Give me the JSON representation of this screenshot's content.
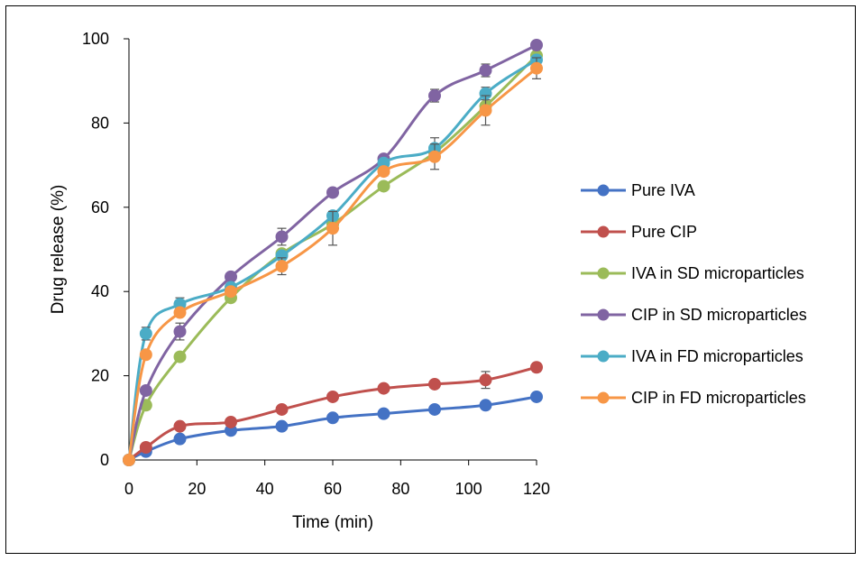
{
  "chart_data": {
    "type": "line",
    "title": "",
    "xlabel": "Time (min)",
    "ylabel": "Drug release (%)",
    "xlim": [
      0,
      120
    ],
    "ylim": [
      0,
      100
    ],
    "xticks": [
      0,
      20,
      40,
      60,
      80,
      100,
      120
    ],
    "yticks": [
      0,
      20,
      40,
      60,
      80,
      100
    ],
    "grid": false,
    "legend_position": "right",
    "x": [
      0,
      5,
      15,
      30,
      45,
      60,
      75,
      90,
      105,
      120
    ],
    "series": [
      {
        "name": "Pure IVA",
        "color": "#4472C4",
        "values": [
          0,
          2,
          5,
          7,
          8,
          10,
          11,
          12,
          13,
          15
        ],
        "errors": [
          0,
          0,
          0,
          0,
          0,
          0,
          0,
          0,
          0,
          0
        ]
      },
      {
        "name": "Pure CIP",
        "color": "#C0504D",
        "values": [
          0,
          3,
          8,
          9,
          12,
          15,
          17,
          18,
          19,
          22
        ],
        "errors": [
          0,
          0,
          0,
          0,
          0,
          0,
          0,
          0,
          2,
          1
        ]
      },
      {
        "name": "IVA in SD microparticles",
        "color": "#9BBB59",
        "values": [
          0,
          13,
          24.5,
          38.5,
          49,
          56,
          65,
          73,
          84,
          96
        ],
        "errors": [
          0,
          1,
          0,
          0,
          0,
          0,
          0,
          0,
          0,
          0
        ]
      },
      {
        "name": "CIP in SD microparticles",
        "color": "#8064A2",
        "values": [
          0,
          16.5,
          30.5,
          43.5,
          53,
          63.5,
          71.5,
          86.5,
          92.5,
          98.5
        ],
        "errors": [
          0,
          0,
          2,
          0,
          2,
          0,
          0,
          1.5,
          1.5,
          0
        ]
      },
      {
        "name": "IVA in FD microparticles",
        "color": "#4BACC6",
        "values": [
          0,
          30,
          37,
          41,
          48.5,
          58,
          70.5,
          74,
          87,
          95
        ],
        "errors": [
          0,
          1.5,
          1.5,
          0,
          0,
          1,
          0,
          2.5,
          1.5,
          0
        ]
      },
      {
        "name": "CIP in FD microparticles",
        "color": "#F79646",
        "values": [
          0,
          25,
          35,
          40,
          46,
          55,
          68.5,
          72,
          83,
          93
        ],
        "errors": [
          0,
          0,
          0,
          0,
          2,
          4,
          1,
          3,
          3.5,
          2.5
        ]
      }
    ]
  }
}
